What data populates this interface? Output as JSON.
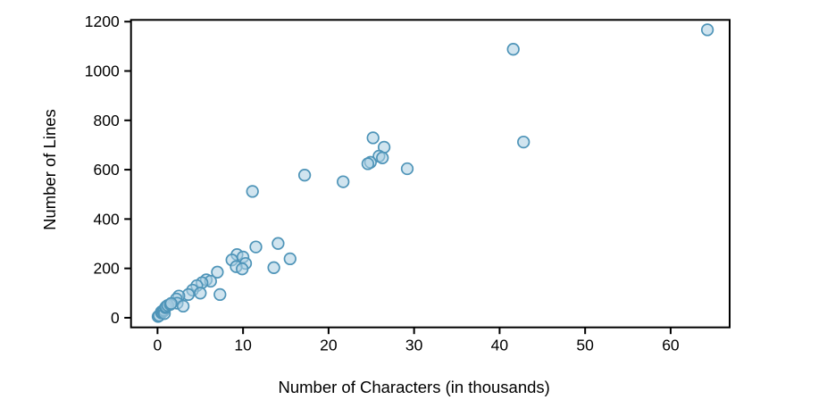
{
  "chart_data": {
    "type": "scatter",
    "title": "",
    "xlabel": "Number of Characters (in thousands)",
    "ylabel": "Number of Lines",
    "xlim": [
      -3.1,
      66.9
    ],
    "ylim": [
      -39,
      1207
    ],
    "x_ticks": [
      0,
      10,
      20,
      30,
      40,
      50,
      60
    ],
    "y_ticks": [
      0,
      200,
      400,
      600,
      800,
      1000,
      1200
    ],
    "grid": false,
    "legend": "none",
    "marker": {
      "shape": "circle",
      "radius": 6.3,
      "fill": "#a9cde2",
      "fill_opacity": 0.55,
      "stroke": "#4e94b8",
      "stroke_width": 1.7
    },
    "points": [
      [
        64.3,
        1167
      ],
      [
        41.6,
        1088
      ],
      [
        42.8,
        712
      ],
      [
        29.2,
        604
      ],
      [
        25.2,
        729
      ],
      [
        26.5,
        691
      ],
      [
        25.9,
        655
      ],
      [
        26.3,
        648
      ],
      [
        24.9,
        630
      ],
      [
        24.6,
        624
      ],
      [
        21.7,
        551
      ],
      [
        17.2,
        578
      ],
      [
        11.1,
        512
      ],
      [
        15.5,
        239
      ],
      [
        14.1,
        301
      ],
      [
        13.6,
        203
      ],
      [
        11.5,
        287
      ],
      [
        9.3,
        256
      ],
      [
        10.0,
        246
      ],
      [
        8.7,
        234
      ],
      [
        10.3,
        220
      ],
      [
        9.2,
        207
      ],
      [
        9.9,
        198
      ],
      [
        7.0,
        185
      ],
      [
        5.7,
        154
      ],
      [
        6.2,
        148
      ],
      [
        5.2,
        142
      ],
      [
        4.6,
        130
      ],
      [
        4.1,
        112
      ],
      [
        5.0,
        100
      ],
      [
        3.6,
        94
      ],
      [
        2.5,
        88
      ],
      [
        2.2,
        76
      ],
      [
        7.3,
        94
      ],
      [
        2.3,
        59
      ],
      [
        3.0,
        47
      ],
      [
        0.06,
        5
      ],
      [
        0.2,
        9
      ],
      [
        0.45,
        24
      ],
      [
        0.46,
        20
      ],
      [
        0.5,
        23
      ],
      [
        0.63,
        28
      ],
      [
        0.68,
        26
      ],
      [
        0.75,
        31
      ],
      [
        0.81,
        17
      ],
      [
        0.93,
        41
      ],
      [
        1.0,
        45
      ],
      [
        1.2,
        50
      ],
      [
        1.5,
        54
      ],
      [
        1.6,
        58
      ]
    ]
  },
  "colors": {
    "background": "#ffffff",
    "axis": "#000000",
    "text": "#000000"
  }
}
